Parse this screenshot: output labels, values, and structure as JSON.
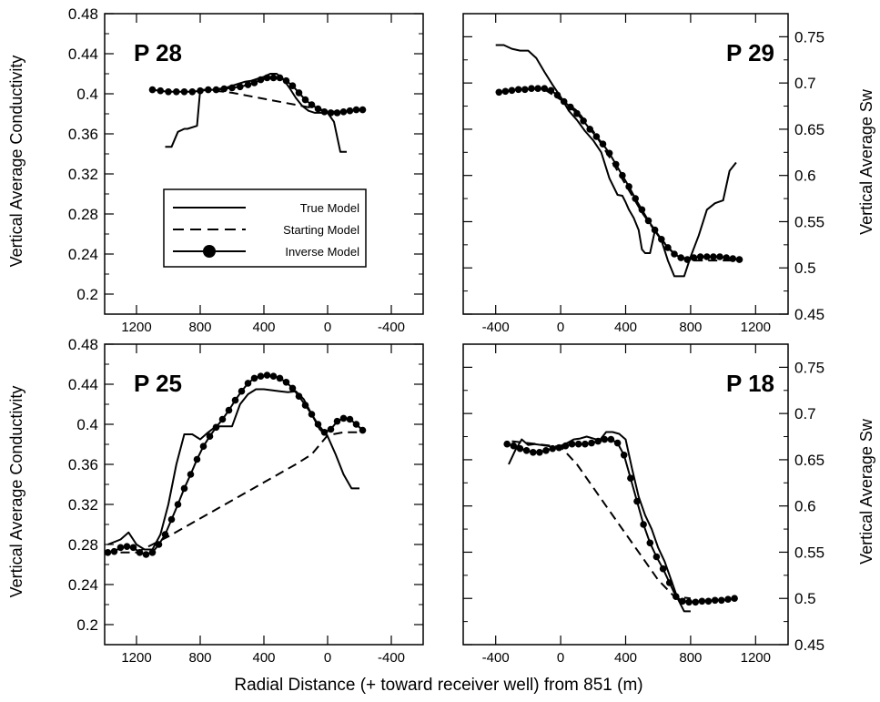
{
  "figure": {
    "xlabel": "Radial Distance (+ toward receiver well) from 851 (m)",
    "ylabel_left": "Vertical Average Conductivity",
    "ylabel_right": "Vertical Average Sw",
    "legend": {
      "true_label": "True Model",
      "starting_label": "Starting Model",
      "inverse_label": "Inverse Model"
    }
  },
  "chart_data": [
    {
      "type": "line",
      "panel": "P 28",
      "title": "P 28",
      "xlim": [
        1400,
        -600
      ],
      "x_reversed": true,
      "ylim": [
        0.18,
        0.48
      ],
      "x_ticks": [
        "1200",
        "800",
        "400",
        "0",
        "-400"
      ],
      "x_tick_values": [
        1200,
        800,
        400,
        0,
        -400
      ],
      "y_ticks": [
        "0.48",
        "0.44",
        "0.4",
        "0.36",
        "0.32",
        "0.28",
        "0.24",
        "0.2"
      ],
      "y_tick_values": [
        0.48,
        0.44,
        0.4,
        0.36,
        0.32,
        0.28,
        0.24,
        0.2
      ],
      "show_y_labels": true,
      "legend": "center-left",
      "series": [
        {
          "name": "True Model",
          "style": "solid",
          "x": [
            1020,
            980,
            940,
            900,
            880,
            820,
            800,
            760,
            720,
            680,
            640,
            600,
            560,
            520,
            480,
            440,
            400,
            360,
            320,
            280,
            240,
            200,
            160,
            120,
            80,
            40,
            0,
            -40,
            -80,
            -120
          ],
          "y": [
            0.347,
            0.347,
            0.362,
            0.365,
            0.365,
            0.368,
            0.404,
            0.404,
            0.404,
            0.405,
            0.406,
            0.408,
            0.41,
            0.412,
            0.413,
            0.415,
            0.417,
            0.42,
            0.42,
            0.415,
            0.406,
            0.396,
            0.388,
            0.383,
            0.381,
            0.381,
            0.381,
            0.372,
            0.342,
            0.342
          ]
        },
        {
          "name": "Starting Model",
          "style": "dashed",
          "x": [
            800,
            700,
            600,
            500,
            400,
            300,
            200,
            100,
            0,
            -100
          ],
          "y": [
            0.404,
            0.403,
            0.401,
            0.398,
            0.395,
            0.392,
            0.389,
            0.386,
            0.383,
            0.381
          ]
        },
        {
          "name": "Inverse Model",
          "style": "solid-dot",
          "x": [
            1100,
            1050,
            1000,
            950,
            900,
            850,
            800,
            750,
            700,
            650,
            600,
            550,
            500,
            460,
            420,
            380,
            340,
            300,
            260,
            220,
            180,
            140,
            100,
            60,
            20,
            -20,
            -60,
            -100,
            -140,
            -180,
            -220
          ],
          "y": [
            0.404,
            0.403,
            0.402,
            0.402,
            0.402,
            0.402,
            0.403,
            0.404,
            0.404,
            0.405,
            0.406,
            0.407,
            0.409,
            0.411,
            0.414,
            0.416,
            0.416,
            0.416,
            0.413,
            0.408,
            0.401,
            0.394,
            0.389,
            0.385,
            0.382,
            0.381,
            0.381,
            0.382,
            0.383,
            0.384,
            0.384
          ]
        }
      ]
    },
    {
      "type": "line",
      "panel": "P 29",
      "title": "P 29",
      "xlim": [
        -600,
        1400
      ],
      "x_reversed": false,
      "ylim": [
        0.45,
        0.775
      ],
      "x_ticks": [
        "-400",
        "0",
        "400",
        "800",
        "1200"
      ],
      "x_tick_values": [
        -400,
        0,
        400,
        800,
        1200
      ],
      "y_ticks": [
        "0.75",
        "0.7",
        "0.65",
        "0.6",
        "0.55",
        "0.5",
        "0.45"
      ],
      "y_tick_values": [
        0.75,
        0.7,
        0.65,
        0.6,
        0.55,
        0.5,
        0.45
      ],
      "show_y_labels": true,
      "legend": "",
      "series": [
        {
          "name": "True Model",
          "style": "solid",
          "x": [
            -400,
            -350,
            -300,
            -250,
            -200,
            -150,
            -100,
            -50,
            0,
            50,
            100,
            150,
            200,
            250,
            300,
            350,
            380,
            400,
            420,
            450,
            480,
            500,
            520,
            550,
            580,
            620,
            660,
            700,
            740,
            760,
            800,
            850,
            900,
            950,
            1000,
            1040,
            1080
          ],
          "y": [
            0.741,
            0.741,
            0.737,
            0.735,
            0.735,
            0.727,
            0.712,
            0.698,
            0.685,
            0.67,
            0.66,
            0.648,
            0.638,
            0.625,
            0.597,
            0.579,
            0.578,
            0.571,
            0.563,
            0.554,
            0.541,
            0.52,
            0.516,
            0.516,
            0.54,
            0.53,
            0.508,
            0.491,
            0.491,
            0.491,
            0.512,
            0.535,
            0.563,
            0.57,
            0.573,
            0.605,
            0.614
          ]
        },
        {
          "name": "Starting Model",
          "style": "dashed",
          "x": [
            -100,
            0,
            100,
            200,
            300,
            400,
            500,
            600,
            700,
            800,
            900,
            1000,
            1100
          ],
          "y": [
            0.693,
            0.682,
            0.67,
            0.648,
            0.62,
            0.59,
            0.56,
            0.535,
            0.515,
            0.508,
            0.508,
            0.508,
            0.508
          ]
        },
        {
          "name": "Inverse Model",
          "style": "solid-dot",
          "x": [
            -380,
            -340,
            -300,
            -260,
            -220,
            -180,
            -140,
            -100,
            -60,
            -20,
            20,
            60,
            100,
            140,
            180,
            220,
            260,
            300,
            340,
            380,
            420,
            460,
            500,
            540,
            580,
            620,
            660,
            700,
            740,
            780,
            820,
            860,
            900,
            940,
            980,
            1020,
            1060,
            1100
          ],
          "y": [
            0.69,
            0.691,
            0.692,
            0.693,
            0.693,
            0.694,
            0.694,
            0.694,
            0.692,
            0.687,
            0.68,
            0.674,
            0.667,
            0.659,
            0.65,
            0.642,
            0.634,
            0.624,
            0.612,
            0.6,
            0.588,
            0.575,
            0.563,
            0.551,
            0.541,
            0.531,
            0.522,
            0.515,
            0.511,
            0.509,
            0.511,
            0.512,
            0.512,
            0.512,
            0.512,
            0.511,
            0.51,
            0.509
          ]
        }
      ]
    },
    {
      "type": "line",
      "panel": "P 25",
      "title": "P 25",
      "xlim": [
        1400,
        -600
      ],
      "x_reversed": true,
      "ylim": [
        0.18,
        0.48
      ],
      "x_ticks": [
        "1200",
        "800",
        "400",
        "0",
        "-400"
      ],
      "x_tick_values": [
        1200,
        800,
        400,
        0,
        -400
      ],
      "y_ticks": [
        "0.48",
        "0.44",
        "0.4",
        "0.36",
        "0.32",
        "0.28",
        "0.24",
        "0.2"
      ],
      "y_tick_values": [
        0.48,
        0.44,
        0.4,
        0.36,
        0.32,
        0.28,
        0.24,
        0.2
      ],
      "show_y_labels": true,
      "legend": "",
      "series": [
        {
          "name": "True Model",
          "style": "solid",
          "x": [
            1380,
            1300,
            1250,
            1200,
            1150,
            1100,
            1050,
            1000,
            950,
            900,
            850,
            800,
            750,
            700,
            650,
            600,
            550,
            500,
            450,
            400,
            350,
            300,
            250,
            200,
            150,
            100,
            50,
            0,
            -50,
            -100,
            -150,
            -200
          ],
          "y": [
            0.28,
            0.285,
            0.292,
            0.28,
            0.275,
            0.275,
            0.29,
            0.32,
            0.36,
            0.39,
            0.39,
            0.385,
            0.392,
            0.398,
            0.398,
            0.398,
            0.42,
            0.43,
            0.435,
            0.435,
            0.434,
            0.433,
            0.432,
            0.433,
            0.425,
            0.41,
            0.395,
            0.388,
            0.37,
            0.35,
            0.336,
            0.336
          ]
        },
        {
          "name": "Starting Model",
          "style": "dashed",
          "x": [
            1300,
            1200,
            1100,
            1000,
            900,
            800,
            700,
            600,
            500,
            400,
            300,
            200,
            100,
            0,
            -100,
            -200
          ],
          "y": [
            0.272,
            0.272,
            0.28,
            0.288,
            0.297,
            0.306,
            0.315,
            0.324,
            0.333,
            0.342,
            0.351,
            0.36,
            0.37,
            0.389,
            0.392,
            0.392
          ]
        },
        {
          "name": "Inverse Model",
          "style": "solid-dot",
          "x": [
            1380,
            1340,
            1300,
            1260,
            1220,
            1180,
            1140,
            1100,
            1060,
            1020,
            980,
            940,
            900,
            860,
            820,
            780,
            740,
            700,
            660,
            620,
            580,
            540,
            500,
            460,
            420,
            380,
            340,
            300,
            260,
            220,
            180,
            140,
            100,
            60,
            20,
            -20,
            -60,
            -100,
            -140,
            -180,
            -220
          ],
          "y": [
            0.272,
            0.273,
            0.277,
            0.278,
            0.277,
            0.272,
            0.27,
            0.272,
            0.28,
            0.29,
            0.305,
            0.32,
            0.336,
            0.35,
            0.365,
            0.378,
            0.388,
            0.397,
            0.405,
            0.414,
            0.424,
            0.433,
            0.441,
            0.446,
            0.448,
            0.449,
            0.448,
            0.446,
            0.442,
            0.436,
            0.428,
            0.419,
            0.41,
            0.4,
            0.392,
            0.395,
            0.403,
            0.406,
            0.405,
            0.4,
            0.394
          ]
        }
      ]
    },
    {
      "type": "line",
      "panel": "P 18",
      "title": "P 18",
      "xlim": [
        -600,
        1400
      ],
      "x_reversed": false,
      "ylim": [
        0.45,
        0.775
      ],
      "x_ticks": [
        "-400",
        "0",
        "400",
        "800",
        "1200"
      ],
      "x_tick_values": [
        -400,
        0,
        400,
        800,
        1200
      ],
      "y_ticks": [
        "0.75",
        "0.7",
        "0.65",
        "0.6",
        "0.55",
        "0.5",
        "0.45"
      ],
      "y_tick_values": [
        0.75,
        0.7,
        0.65,
        0.6,
        0.55,
        0.5,
        0.45
      ],
      "show_y_labels": true,
      "legend": "",
      "series": [
        {
          "name": "True Model",
          "style": "solid",
          "x": [
            -320,
            -280,
            -240,
            -200,
            -160,
            -120,
            -80,
            -40,
            0,
            40,
            80,
            120,
            160,
            200,
            240,
            280,
            320,
            360,
            400,
            440,
            480,
            520,
            560,
            600,
            640,
            680,
            720,
            760,
            800
          ],
          "y": [
            0.645,
            0.66,
            0.672,
            0.666,
            0.667,
            0.666,
            0.665,
            0.663,
            0.665,
            0.668,
            0.672,
            0.673,
            0.675,
            0.673,
            0.671,
            0.68,
            0.68,
            0.678,
            0.672,
            0.64,
            0.61,
            0.59,
            0.575,
            0.555,
            0.54,
            0.52,
            0.5,
            0.486,
            0.486
          ]
        },
        {
          "name": "Starting Model",
          "style": "dashed",
          "x": [
            -300,
            -200,
            -100,
            0,
            100,
            200,
            300,
            400,
            500,
            600,
            700,
            800
          ],
          "y": [
            0.67,
            0.668,
            0.666,
            0.664,
            0.645,
            0.62,
            0.595,
            0.57,
            0.545,
            0.52,
            0.502,
            0.5
          ]
        },
        {
          "name": "Inverse Model",
          "style": "solid-dot",
          "x": [
            -330,
            -290,
            -250,
            -210,
            -170,
            -130,
            -90,
            -50,
            -10,
            30,
            70,
            110,
            150,
            190,
            230,
            270,
            310,
            350,
            390,
            430,
            470,
            510,
            550,
            590,
            630,
            670,
            710,
            750,
            790,
            830,
            870,
            910,
            950,
            990,
            1030,
            1070
          ],
          "y": [
            0.667,
            0.665,
            0.662,
            0.66,
            0.658,
            0.658,
            0.66,
            0.662,
            0.663,
            0.665,
            0.667,
            0.667,
            0.667,
            0.668,
            0.67,
            0.672,
            0.672,
            0.668,
            0.655,
            0.63,
            0.605,
            0.58,
            0.56,
            0.545,
            0.532,
            0.517,
            0.502,
            0.497,
            0.496,
            0.496,
            0.497,
            0.497,
            0.498,
            0.498,
            0.499,
            0.5
          ]
        }
      ]
    }
  ]
}
